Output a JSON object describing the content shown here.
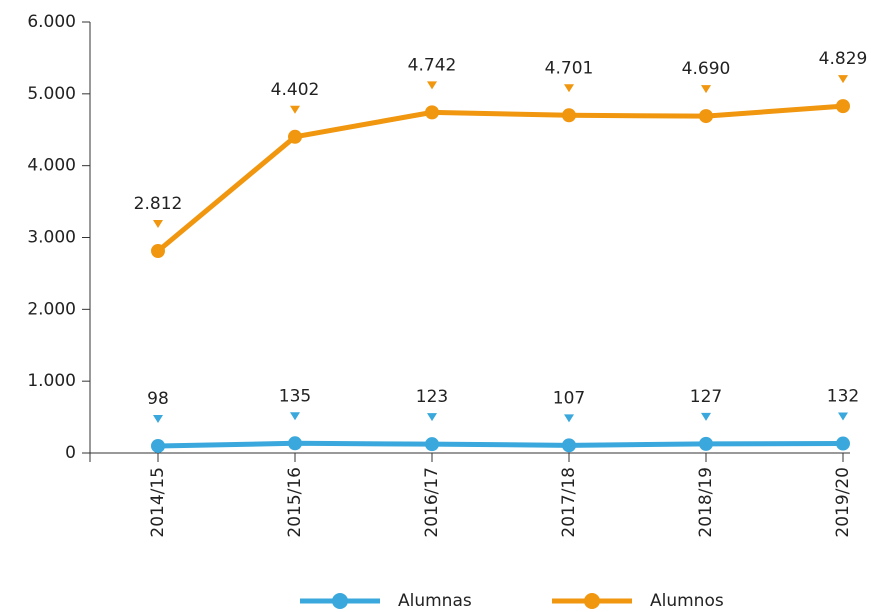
{
  "chart_data": {
    "type": "line",
    "categories": [
      "2014/15",
      "2015/16",
      "2016/17",
      "2017/18",
      "2018/19",
      "2019/20"
    ],
    "series": [
      {
        "name": "Alumnas",
        "color": "#3aa8dc",
        "values": [
          98,
          135,
          123,
          107,
          127,
          132
        ]
      },
      {
        "name": "Alumnos",
        "color": "#f0960f",
        "values": [
          2812,
          4402,
          4742,
          4701,
          4690,
          4829
        ],
        "value_labels": [
          "2.812",
          "4.402",
          "4.742",
          "4.701",
          "4.690",
          "4.829"
        ]
      }
    ],
    "ylim": [
      0,
      6000
    ],
    "yticks": [
      0,
      {
        "value": 1000,
        "label": "1.000"
      },
      {
        "value": 2000,
        "label": "2.000"
      },
      {
        "value": 3000,
        "label": "3.000"
      },
      {
        "value": 4000,
        "label": "4.000"
      },
      {
        "value": 5000,
        "label": "5.000"
      },
      {
        "value": 6000,
        "label": "6.000"
      }
    ],
    "grid": false,
    "legend": "bottom"
  }
}
